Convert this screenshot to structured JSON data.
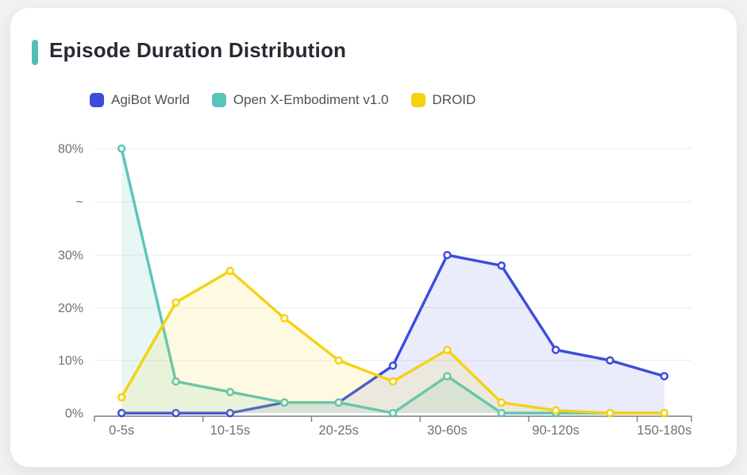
{
  "title": "Episode Duration Distribution",
  "accent_color": "#53bfb4",
  "legend": {
    "items": [
      {
        "label": "AgiBot World",
        "color": "#3c4cdb"
      },
      {
        "label": "Open X-Embodiment v1.0",
        "color": "#58c4ba"
      },
      {
        "label": "DROID",
        "color": "#f5d211"
      }
    ]
  },
  "chart_data": {
    "type": "line",
    "title": "Episode Duration Distribution",
    "categories": [
      "0-5s",
      "",
      "10-15s",
      "",
      "20-25s",
      "",
      "30-60s",
      "",
      "90-120s",
      "",
      "150-180s"
    ],
    "x_tick_labels_visible": [
      "0-5s",
      "10-15s",
      "20-25s",
      "30-60s",
      "90-120s",
      "150-180s"
    ],
    "series": [
      {
        "name": "AgiBot World",
        "color": "#3c4cdb",
        "fill_opacity": 0.11,
        "values": [
          0,
          0,
          0,
          2,
          2,
          9,
          30,
          28,
          12,
          10,
          7
        ]
      },
      {
        "name": "Open X-Embodiment v1.0",
        "color": "#58c4ba",
        "fill_opacity": 0.14,
        "values": [
          80,
          6,
          4,
          2,
          2,
          0,
          7,
          0,
          0,
          0,
          0
        ]
      },
      {
        "name": "DROID",
        "color": "#f5d211",
        "fill_opacity": 0.12,
        "values": [
          3,
          21,
          27,
          18,
          10,
          6,
          12,
          2,
          0.5,
          0,
          0
        ]
      }
    ],
    "xlabel": "",
    "ylabel": "",
    "y_axis": {
      "tick_labels": [
        "0%",
        "10%",
        "20%",
        "30%",
        "~",
        "80%"
      ],
      "unit": "%",
      "break_between": [
        30,
        80
      ]
    },
    "ylim": [
      0,
      80
    ],
    "grid": true,
    "area_fill": true,
    "legend_position": "top",
    "axis_text_color": "#6e7079",
    "gridline_color": "#e7eaf0",
    "axis_line_color": "#787d86"
  }
}
